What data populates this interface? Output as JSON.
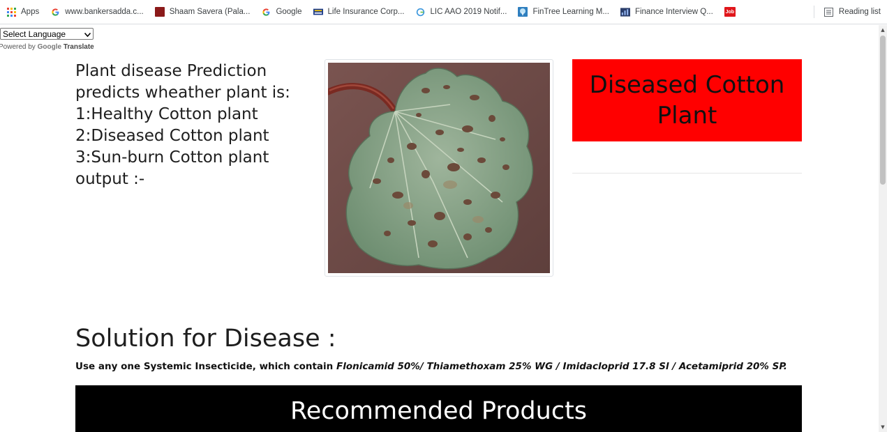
{
  "bookmarks_bar": {
    "items": [
      {
        "label": "Apps",
        "icon": "apps-grid-icon"
      },
      {
        "label": "www.bankersadda.c...",
        "icon": "google-g-icon"
      },
      {
        "label": "Shaam Savera (Pala...",
        "icon": "site-favicon-icon"
      },
      {
        "label": "Google",
        "icon": "google-g-icon"
      },
      {
        "label": "Life Insurance Corp...",
        "icon": "lic-logo-icon"
      },
      {
        "label": "LIC AAO 2019 Notif...",
        "icon": "edge-icon"
      },
      {
        "label": "FinTree Learning M...",
        "icon": "tree-icon"
      },
      {
        "label": "Finance Interview Q...",
        "icon": "site-favicon-icon"
      },
      {
        "label": "",
        "icon": "job-badge-icon",
        "badge": "Job"
      }
    ],
    "reading_list": {
      "label": "Reading list",
      "icon": "reading-list-icon"
    }
  },
  "translate": {
    "select_value": "Select Language",
    "powered_prefix": "Powered by",
    "google": "Google",
    "translate": "Translate"
  },
  "intro": {
    "lines": [
      "Plant disease Prediction",
      "predicts wheather plant is:",
      "1:Healthy Cotton plant",
      "2:Diseased Cotton plant",
      "3:Sun-burn Cotton plant",
      "output :-"
    ]
  },
  "result": {
    "text": "Diseased Cotton Plant",
    "color": "#ff0000"
  },
  "solution": {
    "title": "Solution for Disease :",
    "text_prefix": "Use any one Systemic Insecticide, which contain ",
    "text_chemicals": "Flonicamid 50%/ Thiamethoxam 25% WG / Imidacloprid 17.8 Sl / Acetamiprid 20% SP."
  },
  "recommended": {
    "title": "Recommended Products"
  },
  "image": {
    "subject": "diseased-cotton-leaf-photo"
  }
}
